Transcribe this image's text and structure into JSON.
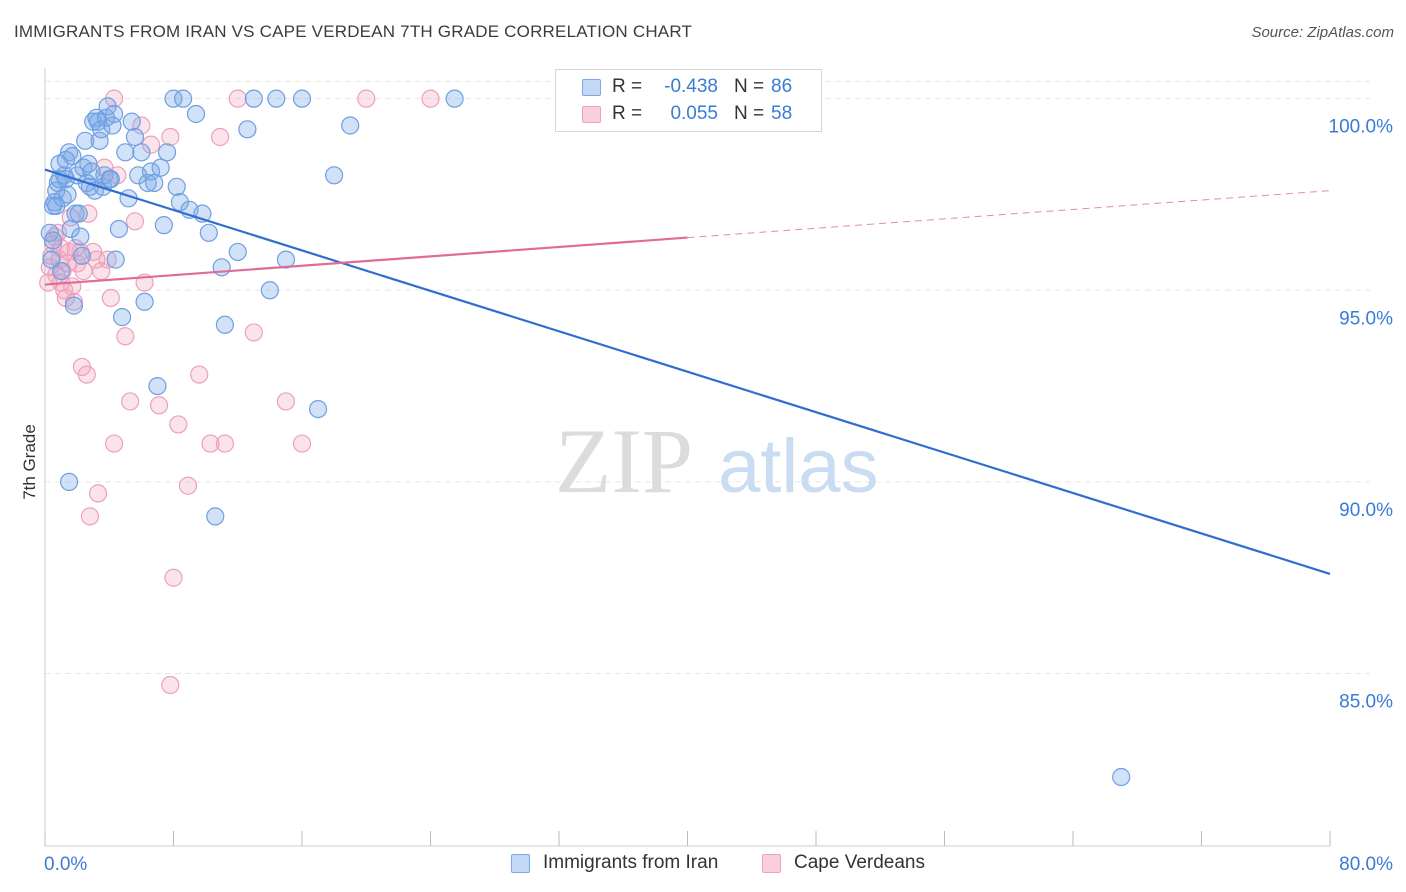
{
  "title": "IMMIGRANTS FROM IRAN VS CAPE VERDEAN 7TH GRADE CORRELATION CHART",
  "source": "Source: ZipAtlas.com",
  "watermark": {
    "zip": "ZIP",
    "atlas": "atlas"
  },
  "legend": {
    "rows": [
      {
        "r_label": "R =",
        "r_value": "-0.438",
        "n_label": "N =",
        "n_value": "86"
      },
      {
        "r_label": "R =",
        "r_value": "0.055",
        "n_label": "N =",
        "n_value": "58"
      }
    ]
  },
  "colors": {
    "iran": "#7aa8e8",
    "iran_line": "#2f6fd0",
    "cape": "#f2a1bd",
    "cape_line": "#e06c96",
    "axis_label": "#3a7bd5"
  },
  "chart_data": {
    "type": "scatter",
    "title": "IMMIGRANTS FROM IRAN VS CAPE VERDEAN 7TH GRADE CORRELATION CHART",
    "xlabel": "",
    "ylabel": "7th Grade",
    "xlim": [
      0,
      80
    ],
    "ylim": [
      80.5,
      100.8
    ],
    "x_tick_labels": [
      "0.0%",
      "80.0%"
    ],
    "y_ticks": [
      85,
      90,
      95,
      100
    ],
    "y_tick_labels": [
      "85.0%",
      "90.0%",
      "95.0%",
      "100.0%"
    ],
    "grid": true,
    "series": [
      {
        "name": "Immigrants from Iran",
        "color": "#7aa8e8",
        "R": -0.438,
        "N": 86,
        "trend": {
          "x": [
            0,
            80
          ],
          "y": [
            98.15,
            87.6
          ],
          "dashed_from": null
        },
        "points": [
          [
            0.3,
            96.5
          ],
          [
            0.4,
            95.8
          ],
          [
            0.5,
            97.2
          ],
          [
            0.6,
            97.3
          ],
          [
            0.7,
            97.6
          ],
          [
            0.8,
            97.8
          ],
          [
            0.9,
            98.3
          ],
          [
            1.0,
            95.5
          ],
          [
            1.1,
            97.4
          ],
          [
            1.2,
            98.0
          ],
          [
            1.3,
            97.9
          ],
          [
            1.4,
            97.5
          ],
          [
            1.5,
            98.6
          ],
          [
            1.6,
            96.6
          ],
          [
            1.7,
            98.5
          ],
          [
            1.8,
            94.6
          ],
          [
            1.9,
            97.0
          ],
          [
            2.0,
            98.0
          ],
          [
            2.1,
            97.0
          ],
          [
            2.2,
            96.4
          ],
          [
            2.3,
            95.9
          ],
          [
            2.4,
            98.2
          ],
          [
            2.5,
            98.9
          ],
          [
            2.6,
            97.8
          ],
          [
            2.7,
            98.3
          ],
          [
            2.8,
            97.7
          ],
          [
            3.0,
            99.4
          ],
          [
            3.2,
            99.5
          ],
          [
            3.3,
            99.4
          ],
          [
            3.4,
            98.9
          ],
          [
            3.5,
            99.2
          ],
          [
            3.6,
            97.7
          ],
          [
            3.7,
            98.0
          ],
          [
            3.8,
            99.5
          ],
          [
            3.9,
            99.8
          ],
          [
            4.0,
            97.9
          ],
          [
            4.2,
            99.3
          ],
          [
            4.3,
            99.6
          ],
          [
            4.4,
            95.8
          ],
          [
            4.6,
            96.6
          ],
          [
            4.8,
            94.3
          ],
          [
            5.0,
            98.6
          ],
          [
            5.2,
            97.4
          ],
          [
            5.4,
            99.4
          ],
          [
            5.6,
            99.0
          ],
          [
            5.8,
            98.0
          ],
          [
            6.0,
            98.6
          ],
          [
            6.2,
            94.7
          ],
          [
            6.4,
            97.8
          ],
          [
            6.6,
            98.1
          ],
          [
            6.8,
            97.8
          ],
          [
            7.0,
            92.5
          ],
          [
            7.2,
            98.2
          ],
          [
            7.4,
            96.7
          ],
          [
            7.6,
            98.6
          ],
          [
            8.0,
            100.0
          ],
          [
            8.2,
            97.7
          ],
          [
            8.4,
            97.3
          ],
          [
            8.6,
            100.0
          ],
          [
            9.0,
            97.1
          ],
          [
            9.4,
            99.6
          ],
          [
            9.8,
            97.0
          ],
          [
            10.2,
            96.5
          ],
          [
            10.6,
            89.1
          ],
          [
            11.0,
            95.6
          ],
          [
            11.2,
            94.1
          ],
          [
            12.0,
            96.0
          ],
          [
            12.6,
            99.2
          ],
          [
            13.0,
            100.0
          ],
          [
            14.0,
            95.0
          ],
          [
            14.4,
            100.0
          ],
          [
            15.0,
            95.8
          ],
          [
            16.0,
            100.0
          ],
          [
            17.0,
            91.9
          ],
          [
            18.0,
            98.0
          ],
          [
            19.0,
            99.3
          ],
          [
            25.5,
            100.0
          ],
          [
            67.0,
            82.3
          ],
          [
            1.5,
            90.0
          ],
          [
            0.5,
            96.3
          ],
          [
            0.9,
            97.9
          ],
          [
            1.3,
            98.4
          ],
          [
            2.9,
            98.1
          ],
          [
            3.1,
            97.6
          ],
          [
            4.1,
            97.9
          ],
          [
            0.7,
            97.2
          ]
        ]
      },
      {
        "name": "Cape Verdeans",
        "color": "#f2a1bd",
        "R": 0.055,
        "N": 58,
        "trend": {
          "x": [
            0,
            80
          ],
          "y": [
            95.15,
            97.6
          ],
          "dashed_from": 40
        },
        "points": [
          [
            0.2,
            95.2
          ],
          [
            0.3,
            95.6
          ],
          [
            0.4,
            95.9
          ],
          [
            0.5,
            96.2
          ],
          [
            0.6,
            96.4
          ],
          [
            0.7,
            95.4
          ],
          [
            0.8,
            96.5
          ],
          [
            0.9,
            95.8
          ],
          [
            1.0,
            96.1
          ],
          [
            1.1,
            95.5
          ],
          [
            1.2,
            95.0
          ],
          [
            1.3,
            94.8
          ],
          [
            1.4,
            95.7
          ],
          [
            1.5,
            96.0
          ],
          [
            1.6,
            96.9
          ],
          [
            1.7,
            95.1
          ],
          [
            1.8,
            94.7
          ],
          [
            1.9,
            96.1
          ],
          [
            2.0,
            95.7
          ],
          [
            2.2,
            96.0
          ],
          [
            2.3,
            93.0
          ],
          [
            2.4,
            95.5
          ],
          [
            2.6,
            92.8
          ],
          [
            2.8,
            89.1
          ],
          [
            3.0,
            96.0
          ],
          [
            3.2,
            95.8
          ],
          [
            3.3,
            89.7
          ],
          [
            3.5,
            95.5
          ],
          [
            3.7,
            98.2
          ],
          [
            3.9,
            95.8
          ],
          [
            4.1,
            94.8
          ],
          [
            4.3,
            91.0
          ],
          [
            4.5,
            98.0
          ],
          [
            5.0,
            93.8
          ],
          [
            5.3,
            92.1
          ],
          [
            5.6,
            96.8
          ],
          [
            6.0,
            99.3
          ],
          [
            6.6,
            98.8
          ],
          [
            7.1,
            92.0
          ],
          [
            7.8,
            99.0
          ],
          [
            8.3,
            91.5
          ],
          [
            8.9,
            89.9
          ],
          [
            9.6,
            92.8
          ],
          [
            10.3,
            91.0
          ],
          [
            10.9,
            99.0
          ],
          [
            11.2,
            91.0
          ],
          [
            12.0,
            100.0
          ],
          [
            13.0,
            93.9
          ],
          [
            15.0,
            92.1
          ],
          [
            16.0,
            91.0
          ],
          [
            20.0,
            100.0
          ],
          [
            24.0,
            100.0
          ],
          [
            8.0,
            87.5
          ],
          [
            7.8,
            84.7
          ],
          [
            4.3,
            100.0
          ],
          [
            1.0,
            95.2
          ],
          [
            2.7,
            97.0
          ],
          [
            6.2,
            95.2
          ]
        ]
      }
    ]
  }
}
